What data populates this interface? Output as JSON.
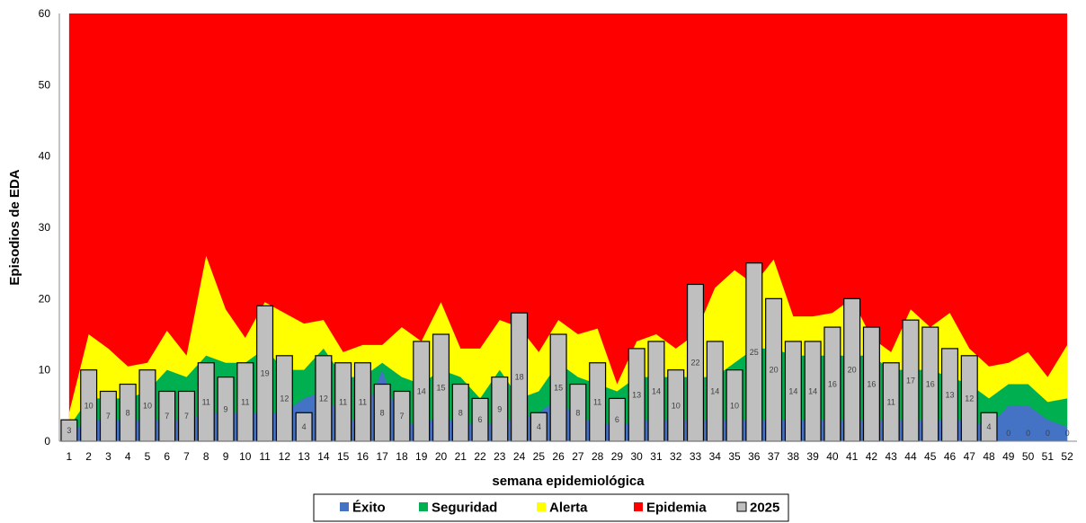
{
  "chart_data": {
    "type": "bar",
    "title": "",
    "xlabel": "semana epidemiológica",
    "ylabel": "Episodios de EDA",
    "ylim": [
      0,
      60
    ],
    "yticks": [
      "0",
      "10",
      "20",
      "30",
      "40",
      "50",
      "60"
    ],
    "categories": [
      "1",
      "2",
      "3",
      "4",
      "5",
      "6",
      "7",
      "8",
      "9",
      "10",
      "11",
      "12",
      "13",
      "14",
      "15",
      "16",
      "17",
      "18",
      "19",
      "20",
      "21",
      "22",
      "23",
      "24",
      "25",
      "26",
      "27",
      "28",
      "29",
      "30",
      "31",
      "32",
      "33",
      "34",
      "35",
      "36",
      "37",
      "38",
      "39",
      "40",
      "41",
      "42",
      "43",
      "44",
      "45",
      "46",
      "47",
      "48",
      "49",
      "50",
      "51",
      "52"
    ],
    "legend": {
      "position": "bottom",
      "items": [
        {
          "label": "Éxito",
          "color": "#4472C4"
        },
        {
          "label": "Seguridad",
          "color": "#00B050"
        },
        {
          "label": "Alerta",
          "color": "#FFFF00"
        },
        {
          "label": "Epidemia",
          "color": "#FF0000"
        },
        {
          "label": "2025",
          "color": "#BFBFBF"
        }
      ]
    },
    "area_series": [
      {
        "name": "Éxito",
        "color": "#4472C4",
        "values": [
          1,
          3,
          3,
          3,
          3,
          3,
          3,
          4,
          4,
          4,
          4,
          4,
          6,
          7,
          3,
          3,
          10,
          2,
          3,
          3,
          3,
          2,
          3,
          3,
          4,
          6,
          3,
          3,
          2,
          3,
          3,
          3,
          3,
          3,
          3,
          3,
          3,
          3,
          3,
          3,
          3,
          3,
          3,
          3,
          3,
          3,
          3,
          2,
          5,
          5,
          3,
          2
        ]
      },
      {
        "name": "Seguridad",
        "color": "#00B050",
        "values": [
          2,
          6,
          6,
          6,
          7,
          10,
          9,
          12,
          11,
          11,
          13,
          10,
          10,
          13,
          9,
          9,
          11,
          9,
          8,
          10,
          9,
          6,
          10,
          6,
          7,
          11,
          9,
          8,
          7,
          9,
          9,
          9,
          9,
          9,
          11,
          13,
          13,
          12,
          12,
          12,
          12,
          12,
          10,
          10,
          10,
          9,
          8,
          6,
          8,
          8,
          5.5,
          6
        ]
      },
      {
        "name": "Alerta",
        "color": "#FFFF00",
        "values": [
          4,
          15,
          13,
          10.5,
          11,
          15.5,
          12,
          26,
          18.5,
          14.5,
          19.5,
          18,
          16.5,
          17,
          12.5,
          13.5,
          13.5,
          16,
          14,
          19.5,
          13,
          13,
          17,
          16,
          12.5,
          17,
          15,
          15.8,
          8,
          14,
          15,
          13,
          15,
          21.5,
          24,
          22,
          25.5,
          17.5,
          17.5,
          18,
          20,
          14.5,
          12.5,
          18.5,
          16,
          18,
          13,
          10.5,
          11,
          12.5,
          9,
          13.5
        ]
      },
      {
        "name": "Epidemia",
        "color": "#FF0000",
        "values": [
          60,
          60,
          60,
          60,
          60,
          60,
          60,
          60,
          60,
          60,
          60,
          60,
          60,
          60,
          60,
          60,
          60,
          60,
          60,
          60,
          60,
          60,
          60,
          60,
          60,
          60,
          60,
          60,
          60,
          60,
          60,
          60,
          60,
          60,
          60,
          60,
          60,
          60,
          60,
          60,
          60,
          60,
          60,
          60,
          60,
          60,
          60,
          60,
          60,
          60,
          60,
          60
        ]
      }
    ],
    "series": [
      {
        "name": "2025",
        "color": "#BFBFBF",
        "values": [
          3,
          10,
          7,
          8,
          10,
          7,
          7,
          11,
          9,
          11,
          19,
          12,
          4,
          12,
          11,
          11,
          8,
          7,
          14,
          15,
          8,
          6,
          9,
          18,
          4,
          15,
          8,
          11,
          6,
          13,
          14,
          10,
          22,
          14,
          10,
          25,
          20,
          14,
          14,
          16,
          20,
          16,
          11,
          17,
          16,
          13,
          12,
          4,
          0,
          0,
          0,
          0
        ]
      }
    ],
    "grid": false
  }
}
